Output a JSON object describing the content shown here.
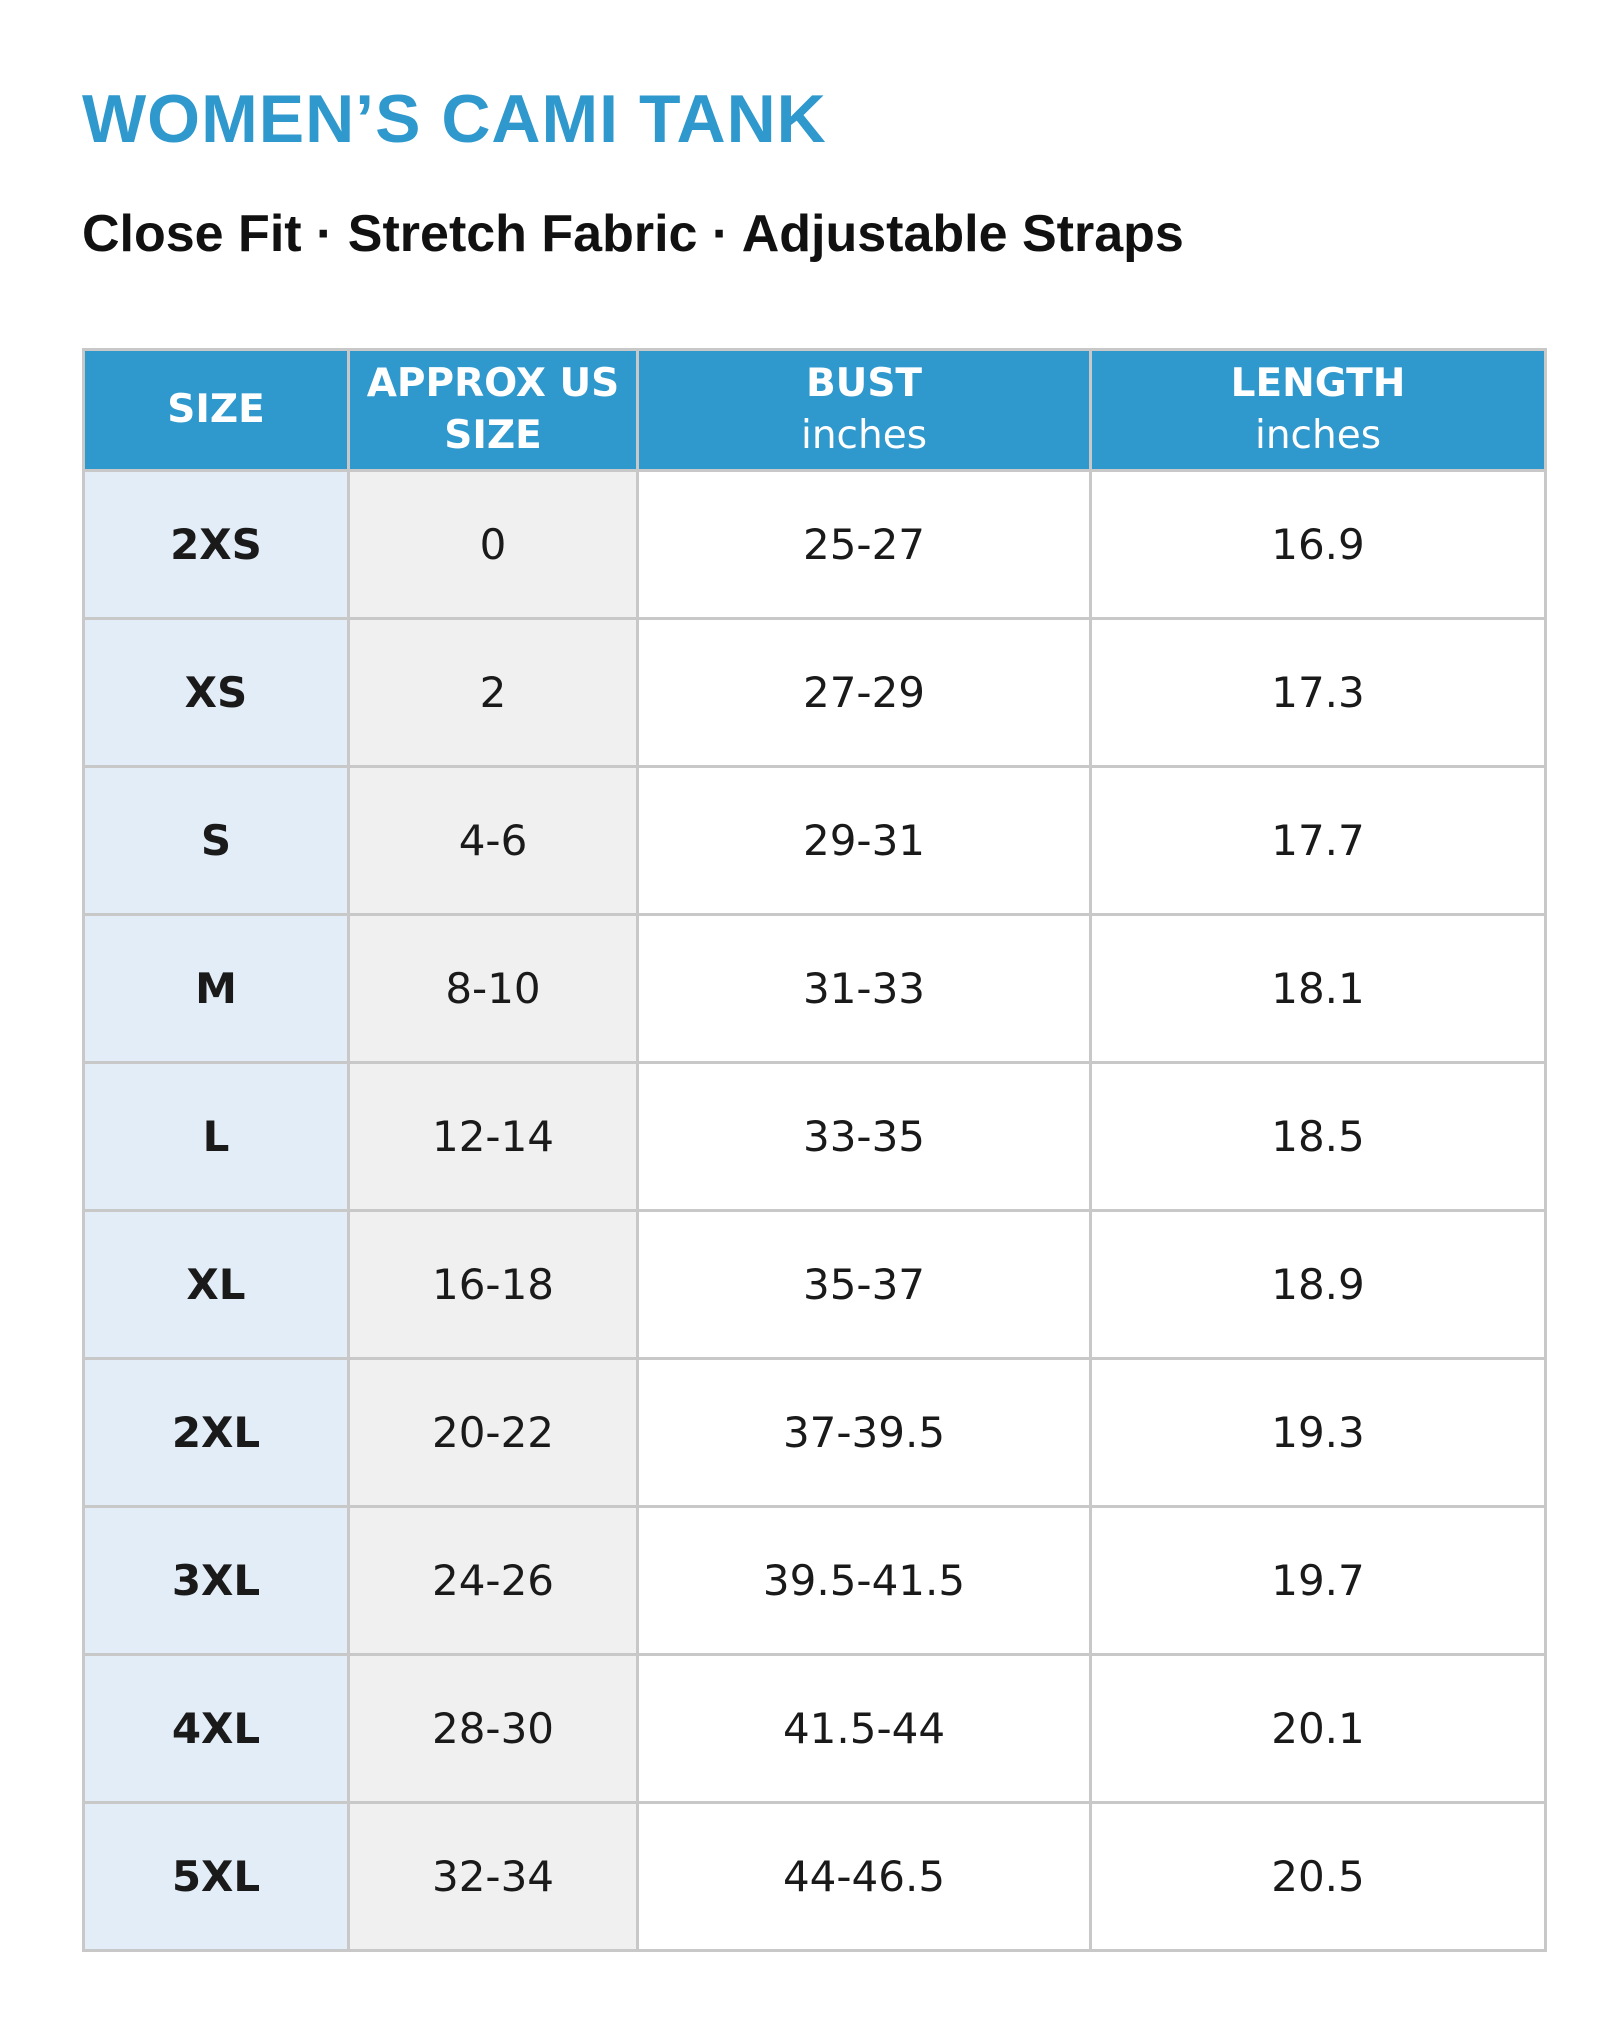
{
  "title": "WOMEN’S CAMI TANK",
  "subtitle": "Close Fit · Stretch Fabric · Adjustable Straps",
  "table": {
    "columns": [
      {
        "label": "SIZE"
      },
      {
        "label": "APPROX US SIZE"
      },
      {
        "label": "BUST",
        "unit": "inches"
      },
      {
        "label": "LENGTH",
        "unit": "inches"
      }
    ],
    "rows": [
      [
        "2XS",
        "0",
        "25-27",
        "16.9"
      ],
      [
        "XS",
        "2",
        "27-29",
        "17.3"
      ],
      [
        "S",
        "4-6",
        "29-31",
        "17.7"
      ],
      [
        "M",
        "8-10",
        "31-33",
        "18.1"
      ],
      [
        "L",
        "12-14",
        "33-35",
        "18.5"
      ],
      [
        "XL",
        "16-18",
        "35-37",
        "18.9"
      ],
      [
        "2XL",
        "20-22",
        "37-39.5",
        "19.3"
      ],
      [
        "3XL",
        "24-26",
        "39.5-41.5",
        "19.7"
      ],
      [
        "4XL",
        "28-30",
        "41.5-44",
        "20.1"
      ],
      [
        "5XL",
        "32-34",
        "44-46.5",
        "20.5"
      ]
    ]
  }
}
